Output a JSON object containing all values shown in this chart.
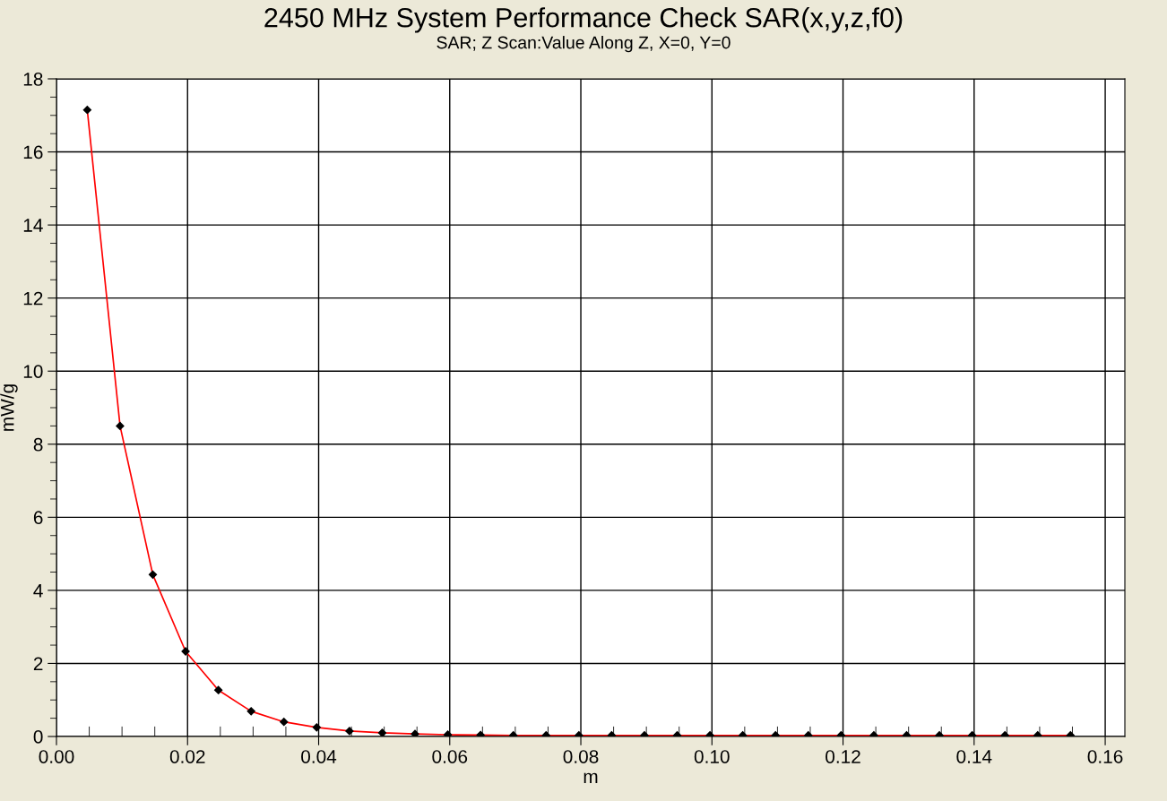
{
  "chart_data": {
    "type": "line",
    "title": "2450 MHz System Performance Check SAR(x,y,z,f0)",
    "subtitle": "SAR; Z Scan:Value Along Z, X=0, Y=0",
    "xlabel": "m",
    "ylabel": "mW/g",
    "x": [
      0.0047,
      0.0097,
      0.0147,
      0.0197,
      0.0247,
      0.0297,
      0.0347,
      0.0397,
      0.0447,
      0.0497,
      0.0547,
      0.0597,
      0.0647,
      0.0697,
      0.0747,
      0.0797,
      0.0847,
      0.0897,
      0.0947,
      0.0997,
      0.1047,
      0.1097,
      0.1147,
      0.1197,
      0.1247,
      0.1297,
      0.1347,
      0.1397,
      0.1447,
      0.1497,
      0.1547
    ],
    "series": [
      {
        "color": "#ff0000",
        "values": [
          17.15,
          8.5,
          4.43,
          2.33,
          1.27,
          0.69,
          0.4,
          0.25,
          0.15,
          0.1,
          0.07,
          0.05,
          0.04,
          0.03,
          0.03,
          0.03,
          0.03,
          0.03,
          0.03,
          0.03,
          0.03,
          0.03,
          0.03,
          0.03,
          0.03,
          0.03,
          0.03,
          0.03,
          0.03,
          0.03,
          0.03
        ]
      }
    ],
    "xlim": [
      0,
      0.163
    ],
    "ylim": [
      0,
      18
    ],
    "xticks": [
      {
        "value": 0,
        "label": "0.00"
      },
      {
        "value": 0.02,
        "label": "0.02"
      },
      {
        "value": 0.04,
        "label": "0.04"
      },
      {
        "value": 0.06,
        "label": "0.06"
      },
      {
        "value": 0.08,
        "label": "0.08"
      },
      {
        "value": 0.1,
        "label": "0.10"
      },
      {
        "value": 0.12,
        "label": "0.12"
      },
      {
        "value": 0.14,
        "label": "0.14"
      },
      {
        "value": 0.16,
        "label": "0.16"
      }
    ],
    "yticks": [
      0,
      2,
      4,
      6,
      8,
      10,
      12,
      14,
      16,
      18
    ],
    "grid": true,
    "marker": "diamond",
    "line_style": "solid"
  }
}
